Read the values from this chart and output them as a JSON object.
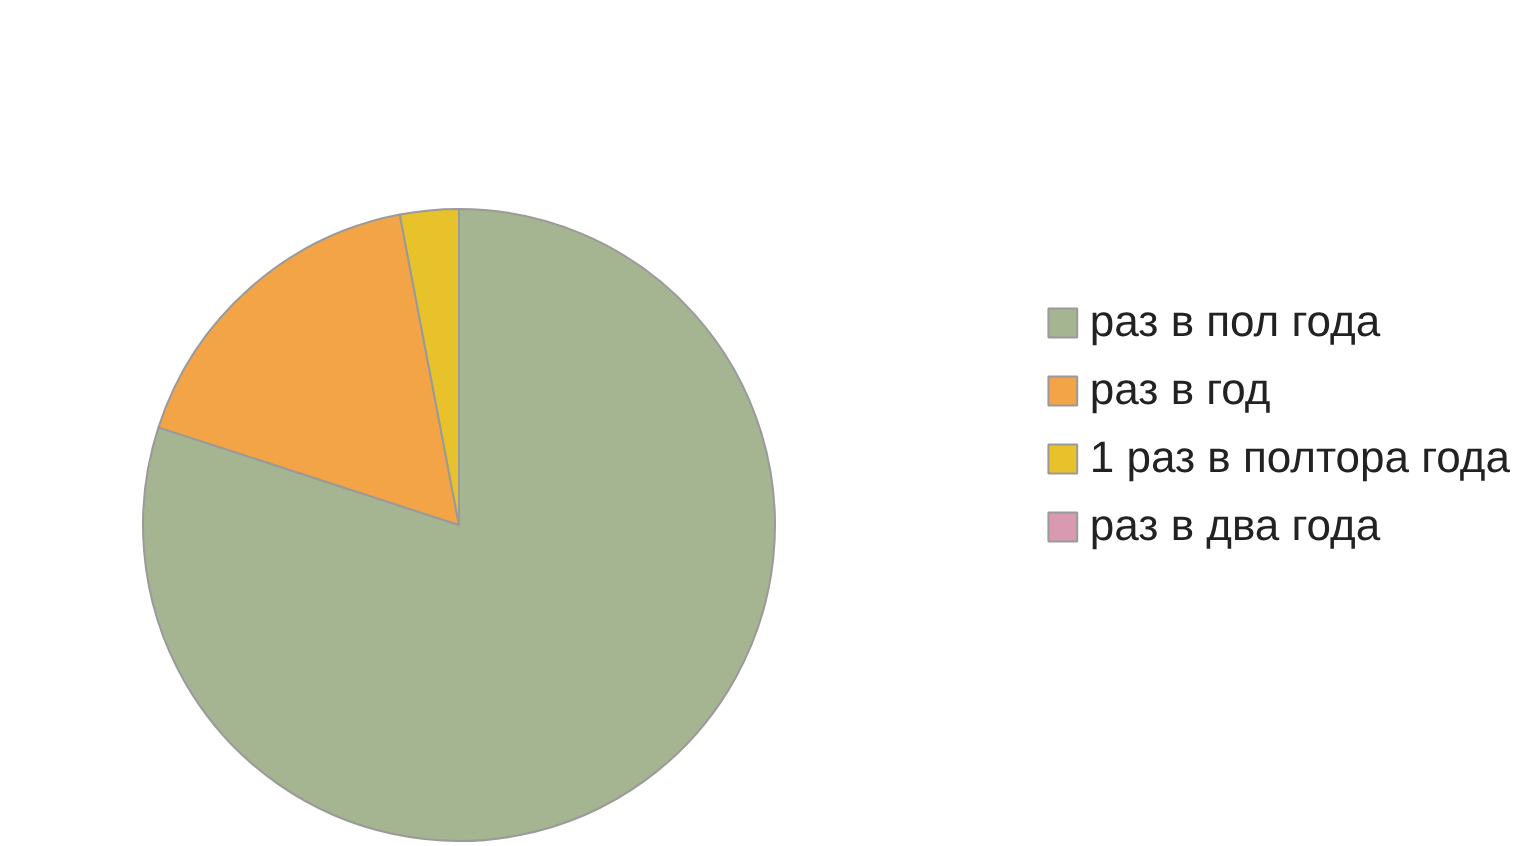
{
  "chart_data": {
    "type": "pie",
    "categories": [
      "раз в пол года",
      "раз в год",
      "1 раз в полтора года",
      "раз в два года"
    ],
    "values": [
      80,
      17,
      3,
      0
    ],
    "colors": [
      "#a5b592",
      "#f3a446",
      "#e8c22a",
      "#d999b0"
    ],
    "legend": "right"
  }
}
